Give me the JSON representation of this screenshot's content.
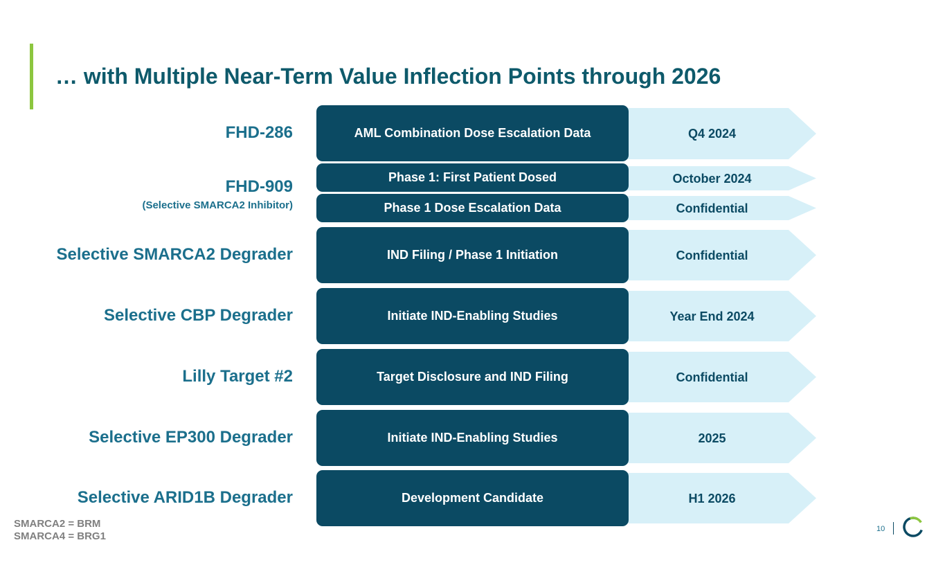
{
  "title": "… with Multiple Near-Term Value Inflection Points through 2026",
  "programs": [
    {
      "name": "FHD-286"
    },
    {
      "name": "FHD-909",
      "sub": "(Selective SMARCA2 Inhibitor)"
    },
    {
      "name": "Selective SMARCA2 Degrader"
    },
    {
      "name": "Selective CBP Degrader"
    },
    {
      "name": "Lilly Target #2"
    },
    {
      "name": "Selective EP300 Degrader"
    },
    {
      "name": "Selective ARID1B Degrader"
    }
  ],
  "milestones": [
    {
      "label": "AML Combination Dose Escalation Data",
      "timing": "Q4 2024"
    },
    {
      "label": "Phase 1: First Patient Dosed",
      "timing": "October 2024"
    },
    {
      "label": "Phase 1 Dose Escalation Data",
      "timing": "Confidential"
    },
    {
      "label": "IND Filing / Phase 1 Initiation",
      "timing": "Confidential"
    },
    {
      "label": "Initiate IND-Enabling Studies",
      "timing": "Year End 2024"
    },
    {
      "label": "Target Disclosure and IND Filing",
      "timing": "Confidential"
    },
    {
      "label": "Initiate IND-Enabling Studies",
      "timing": "2025"
    },
    {
      "label": "Development Candidate",
      "timing": "H1 2026"
    }
  ],
  "footnotes": [
    "SMARCA2 = BRM",
    "SMARCA4 = BRG1"
  ],
  "page_number": "10",
  "colors": {
    "title": "#0e5a6b",
    "accent": "#8cc63f",
    "program_label": "#1b6f8c",
    "milestone_box": "#0b4a63",
    "timing_arrow": "#d7f0f8",
    "footnote": "#7f7f7f"
  },
  "icons": {
    "logo": "ring-logo-icon"
  }
}
